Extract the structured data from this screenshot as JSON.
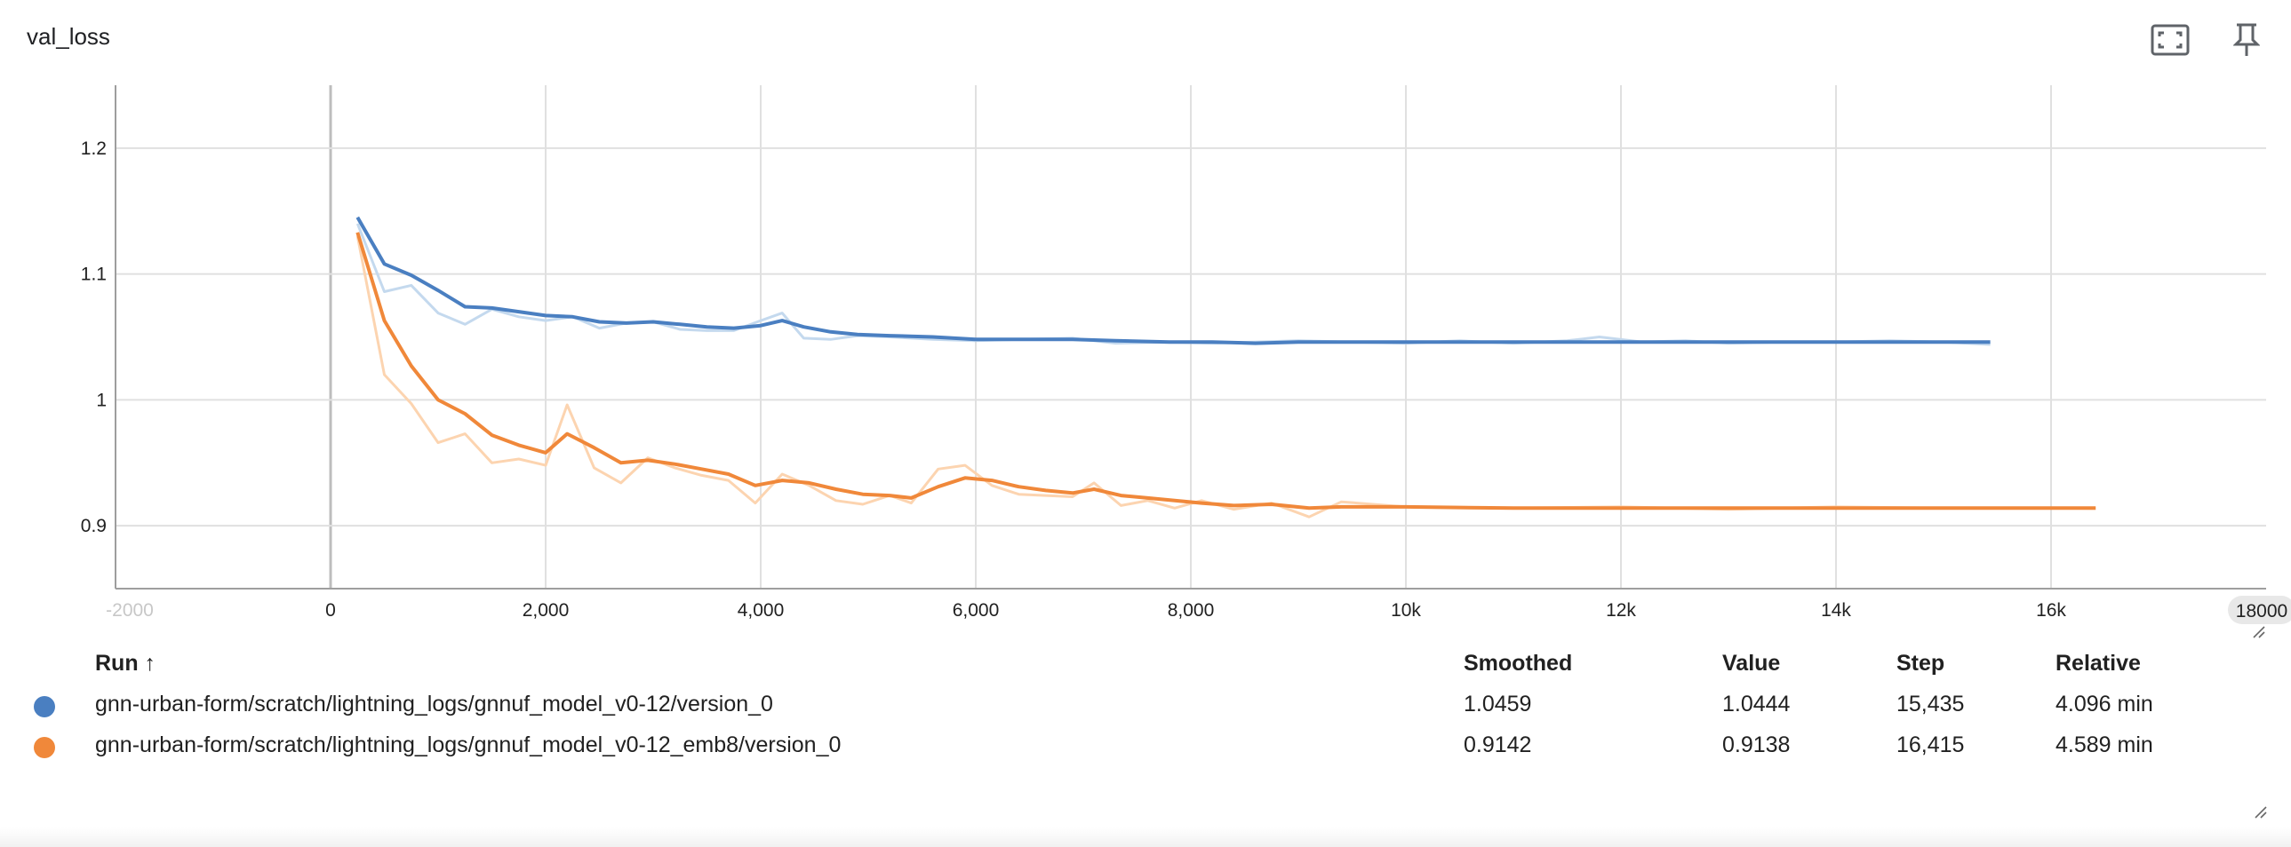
{
  "card": {
    "title": "val_loss"
  },
  "toolbar": {
    "icons": [
      "fullscreen-icon",
      "pin-icon",
      "fit-domain-icon",
      "more-vert-icon"
    ]
  },
  "chart_data": {
    "type": "line",
    "title": "val_loss",
    "xlabel": "",
    "ylabel": "",
    "xlim": [
      -2000,
      18000
    ],
    "ylim": [
      0.85,
      1.25
    ],
    "x_ticks": [
      {
        "v": -2000,
        "label": "-2000"
      },
      {
        "v": 0,
        "label": "0"
      },
      {
        "v": 2000,
        "label": "2,000"
      },
      {
        "v": 4000,
        "label": "4,000"
      },
      {
        "v": 6000,
        "label": "6,000"
      },
      {
        "v": 8000,
        "label": "8,000"
      },
      {
        "v": 10000,
        "label": "10k"
      },
      {
        "v": 12000,
        "label": "12k"
      },
      {
        "v": 14000,
        "label": "14k"
      },
      {
        "v": 16000,
        "label": "16k"
      }
    ],
    "x_end_label": "18000",
    "y_ticks": [
      {
        "v": 0.9,
        "label": "0.9"
      },
      {
        "v": 1.0,
        "label": "1"
      },
      {
        "v": 1.1,
        "label": "1.1"
      },
      {
        "v": 1.2,
        "label": "1.2"
      }
    ],
    "grid": true,
    "series": [
      {
        "name": "gnn-urban-form/scratch/lightning_logs/gnnuf_model_v0-12/version_0",
        "color": "#4a7fc1",
        "raw_color": "#c4d9ee",
        "smoothed": [
          [
            250,
            1.145
          ],
          [
            500,
            1.108
          ],
          [
            750,
            1.099
          ],
          [
            1000,
            1.087
          ],
          [
            1250,
            1.074
          ],
          [
            1500,
            1.073
          ],
          [
            1750,
            1.07
          ],
          [
            2000,
            1.067
          ],
          [
            2250,
            1.066
          ],
          [
            2500,
            1.062
          ],
          [
            2750,
            1.061
          ],
          [
            3000,
            1.062
          ],
          [
            3250,
            1.06
          ],
          [
            3500,
            1.058
          ],
          [
            3750,
            1.057
          ],
          [
            4000,
            1.059
          ],
          [
            4200,
            1.063
          ],
          [
            4400,
            1.058
          ],
          [
            4650,
            1.054
          ],
          [
            4900,
            1.052
          ],
          [
            5200,
            1.051
          ],
          [
            5600,
            1.05
          ],
          [
            6000,
            1.048
          ],
          [
            6400,
            1.048
          ],
          [
            6900,
            1.048
          ],
          [
            7300,
            1.047
          ],
          [
            7800,
            1.046
          ],
          [
            8200,
            1.046
          ],
          [
            8600,
            1.045
          ],
          [
            9000,
            1.046
          ],
          [
            9500,
            1.046
          ],
          [
            10000,
            1.046
          ],
          [
            10500,
            1.046
          ],
          [
            11000,
            1.046
          ],
          [
            11500,
            1.046
          ],
          [
            12000,
            1.046
          ],
          [
            12500,
            1.046
          ],
          [
            13000,
            1.046
          ],
          [
            13500,
            1.046
          ],
          [
            14000,
            1.046
          ],
          [
            14500,
            1.046
          ],
          [
            15000,
            1.046
          ],
          [
            15435,
            1.046
          ]
        ],
        "raw": [
          [
            250,
            1.14
          ],
          [
            500,
            1.086
          ],
          [
            750,
            1.091
          ],
          [
            1000,
            1.069
          ],
          [
            1250,
            1.06
          ],
          [
            1500,
            1.072
          ],
          [
            1750,
            1.066
          ],
          [
            2000,
            1.063
          ],
          [
            2250,
            1.066
          ],
          [
            2500,
            1.057
          ],
          [
            2750,
            1.061
          ],
          [
            3000,
            1.062
          ],
          [
            3250,
            1.056
          ],
          [
            3500,
            1.055
          ],
          [
            3750,
            1.055
          ],
          [
            4000,
            1.063
          ],
          [
            4200,
            1.069
          ],
          [
            4400,
            1.049
          ],
          [
            4650,
            1.048
          ],
          [
            4900,
            1.051
          ],
          [
            5200,
            1.05
          ],
          [
            5600,
            1.048
          ],
          [
            6000,
            1.047
          ],
          [
            6400,
            1.048
          ],
          [
            6900,
            1.049
          ],
          [
            7300,
            1.045
          ],
          [
            7800,
            1.046
          ],
          [
            8200,
            1.045
          ],
          [
            8600,
            1.046
          ],
          [
            9000,
            1.047
          ],
          [
            9500,
            1.046
          ],
          [
            10000,
            1.045
          ],
          [
            10500,
            1.047
          ],
          [
            11000,
            1.045
          ],
          [
            11500,
            1.047
          ],
          [
            11800,
            1.05
          ],
          [
            12200,
            1.046
          ],
          [
            12600,
            1.047
          ],
          [
            13000,
            1.045
          ],
          [
            13500,
            1.046
          ],
          [
            14000,
            1.046
          ],
          [
            14500,
            1.047
          ],
          [
            15000,
            1.046
          ],
          [
            15435,
            1.044
          ]
        ],
        "legend": {
          "smoothed": "1.0459",
          "value": "1.0444",
          "step": "15,435",
          "relative": "4.096 min"
        }
      },
      {
        "name": "gnn-urban-form/scratch/lightning_logs/gnnuf_model_v0-12_emb8/version_0",
        "color": "#f0883a",
        "raw_color": "#fcd4b0",
        "smoothed": [
          [
            250,
            1.133
          ],
          [
            500,
            1.063
          ],
          [
            750,
            1.027
          ],
          [
            1000,
            1.0
          ],
          [
            1250,
            0.989
          ],
          [
            1500,
            0.972
          ],
          [
            1750,
            0.964
          ],
          [
            2000,
            0.958
          ],
          [
            2200,
            0.973
          ],
          [
            2450,
            0.962
          ],
          [
            2700,
            0.95
          ],
          [
            2950,
            0.952
          ],
          [
            3200,
            0.949
          ],
          [
            3450,
            0.945
          ],
          [
            3700,
            0.941
          ],
          [
            3950,
            0.932
          ],
          [
            4200,
            0.936
          ],
          [
            4450,
            0.934
          ],
          [
            4700,
            0.929
          ],
          [
            4950,
            0.925
          ],
          [
            5200,
            0.924
          ],
          [
            5400,
            0.922
          ],
          [
            5650,
            0.931
          ],
          [
            5900,
            0.938
          ],
          [
            6150,
            0.936
          ],
          [
            6400,
            0.931
          ],
          [
            6650,
            0.928
          ],
          [
            6900,
            0.926
          ],
          [
            7100,
            0.929
          ],
          [
            7350,
            0.924
          ],
          [
            7600,
            0.922
          ],
          [
            7850,
            0.92
          ],
          [
            8100,
            0.918
          ],
          [
            8400,
            0.916
          ],
          [
            8750,
            0.917
          ],
          [
            9100,
            0.914
          ],
          [
            9400,
            0.915
          ],
          [
            10000,
            0.915
          ],
          [
            11000,
            0.914
          ],
          [
            12000,
            0.914
          ],
          [
            13000,
            0.914
          ],
          [
            14000,
            0.914
          ],
          [
            15000,
            0.914
          ],
          [
            16000,
            0.914
          ],
          [
            16415,
            0.914
          ]
        ],
        "raw": [
          [
            250,
            1.13
          ],
          [
            500,
            1.02
          ],
          [
            750,
            0.997
          ],
          [
            1000,
            0.966
          ],
          [
            1250,
            0.973
          ],
          [
            1500,
            0.95
          ],
          [
            1750,
            0.953
          ],
          [
            2000,
            0.948
          ],
          [
            2200,
            0.996
          ],
          [
            2450,
            0.946
          ],
          [
            2700,
            0.934
          ],
          [
            2950,
            0.954
          ],
          [
            3200,
            0.946
          ],
          [
            3450,
            0.94
          ],
          [
            3700,
            0.936
          ],
          [
            3950,
            0.918
          ],
          [
            4200,
            0.941
          ],
          [
            4450,
            0.932
          ],
          [
            4700,
            0.92
          ],
          [
            4950,
            0.917
          ],
          [
            5200,
            0.924
          ],
          [
            5400,
            0.918
          ],
          [
            5650,
            0.945
          ],
          [
            5900,
            0.948
          ],
          [
            6150,
            0.932
          ],
          [
            6400,
            0.925
          ],
          [
            6650,
            0.924
          ],
          [
            6900,
            0.923
          ],
          [
            7100,
            0.934
          ],
          [
            7350,
            0.916
          ],
          [
            7600,
            0.92
          ],
          [
            7850,
            0.914
          ],
          [
            8100,
            0.92
          ],
          [
            8400,
            0.913
          ],
          [
            8750,
            0.918
          ],
          [
            9100,
            0.907
          ],
          [
            9400,
            0.919
          ],
          [
            10000,
            0.915
          ],
          [
            11000,
            0.914
          ],
          [
            12000,
            0.915
          ],
          [
            13000,
            0.913
          ],
          [
            14000,
            0.915
          ],
          [
            15000,
            0.914
          ],
          [
            16000,
            0.914
          ],
          [
            16415,
            0.9138
          ]
        ],
        "legend": {
          "smoothed": "0.9142",
          "value": "0.9138",
          "step": "16,415",
          "relative": "4.589 min"
        }
      }
    ]
  },
  "table": {
    "headers": {
      "run": "Run ↑",
      "smoothed": "Smoothed",
      "value": "Value",
      "step": "Step",
      "relative": "Relative"
    }
  }
}
